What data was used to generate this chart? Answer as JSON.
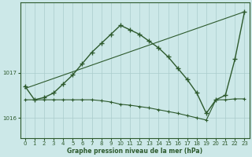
{
  "xlabel": "Graphe pression niveau de la mer (hPa)",
  "bg_color": "#cce8e8",
  "grid_color": "#aacccc",
  "line_color": "#2d5a2d",
  "ylim": [
    1015.55,
    1018.55
  ],
  "yticks": [
    1016,
    1017
  ],
  "xticks": [
    0,
    1,
    2,
    3,
    4,
    5,
    6,
    7,
    8,
    9,
    10,
    11,
    12,
    13,
    14,
    15,
    16,
    17,
    18,
    19,
    20,
    21,
    22,
    23
  ],
  "series1_x": [
    0,
    1,
    2,
    3,
    4,
    5,
    6,
    7,
    8,
    9,
    10,
    11,
    12,
    13,
    14,
    15,
    16,
    17,
    18,
    19,
    20,
    21,
    22,
    23
  ],
  "series1_y": [
    1016.7,
    1016.4,
    1016.45,
    1016.55,
    1016.75,
    1016.95,
    1017.2,
    1017.45,
    1017.65,
    1017.85,
    1018.05,
    1017.95,
    1017.85,
    1017.7,
    1017.55,
    1017.35,
    1017.1,
    1016.85,
    1016.55,
    1016.1,
    1016.4,
    1016.5,
    1017.3,
    1018.35
  ],
  "series2_x": [
    0,
    1,
    2,
    3,
    4,
    5,
    6,
    7,
    8,
    9,
    10,
    11,
    12,
    13,
    14,
    15,
    16,
    17,
    18,
    19,
    20,
    21,
    22,
    23
  ],
  "series2_y": [
    1016.4,
    1016.4,
    1016.4,
    1016.4,
    1016.4,
    1016.4,
    1016.4,
    1016.4,
    1016.38,
    1016.35,
    1016.3,
    1016.28,
    1016.25,
    1016.22,
    1016.18,
    1016.14,
    1016.1,
    1016.05,
    1016.0,
    1015.95,
    1016.4,
    1016.4,
    1016.42,
    1016.42
  ],
  "series3_x": [
    0,
    23
  ],
  "series3_y": [
    1016.65,
    1018.35
  ]
}
